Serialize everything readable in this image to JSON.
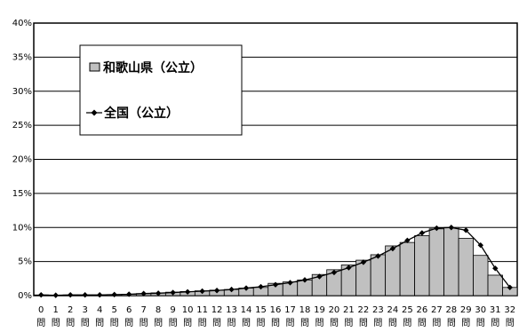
{
  "chart_data": {
    "type": "bar",
    "y_axis": {
      "min": 0,
      "max": 40,
      "step": 5,
      "unit": "%",
      "tick_labels": [
        "0%",
        "5%",
        "10%",
        "15%",
        "20%",
        "25%",
        "30%",
        "35%",
        "40%"
      ]
    },
    "categories": [
      "0",
      "1",
      "2",
      "3",
      "4",
      "5",
      "6",
      "7",
      "8",
      "9",
      "10",
      "11",
      "12",
      "13",
      "14",
      "15",
      "16",
      "17",
      "18",
      "19",
      "20",
      "21",
      "22",
      "23",
      "24",
      "25",
      "26",
      "27",
      "28",
      "29",
      "30",
      "31",
      "32"
    ],
    "category_suffix": "問",
    "series": [
      {
        "name": "和歌山県（公立）",
        "kind": "bar",
        "color": "#c0c0c0",
        "values": [
          0.1,
          0.05,
          0.1,
          0.1,
          0.1,
          0.15,
          0.2,
          0.3,
          0.4,
          0.5,
          0.6,
          0.7,
          0.8,
          0.9,
          1.1,
          1.2,
          1.8,
          2.0,
          2.3,
          3.1,
          3.8,
          4.5,
          5.2,
          6.0,
          7.3,
          7.8,
          8.8,
          9.8,
          10.0,
          8.4,
          5.9,
          3.0,
          1.2
        ]
      },
      {
        "name": "全国（公立）",
        "kind": "line",
        "color": "#000000",
        "marker": "diamond",
        "values": [
          0.1,
          0.05,
          0.1,
          0.1,
          0.1,
          0.15,
          0.2,
          0.3,
          0.35,
          0.45,
          0.55,
          0.65,
          0.75,
          0.9,
          1.1,
          1.3,
          1.6,
          1.9,
          2.3,
          2.8,
          3.4,
          4.1,
          4.9,
          5.8,
          6.9,
          8.1,
          9.2,
          9.9,
          10.0,
          9.6,
          7.4,
          4.0,
          1.2
        ]
      }
    ],
    "legend_position": "top-left inside plot",
    "grid": true
  }
}
